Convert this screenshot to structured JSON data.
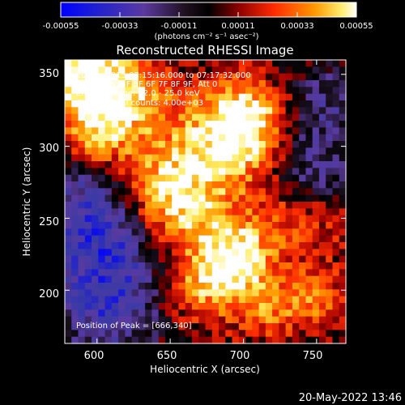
{
  "chart_data": {
    "type": "heatmap",
    "title": "Reconstructed RHESSI Image",
    "xlabel": "Heliocentric X (arcsec)",
    "ylabel": "Heliocentric Y (arcsec)",
    "xlim": [
      578,
      770
    ],
    "ylim": [
      163,
      360
    ],
    "xticks": [
      "600",
      "650",
      "700",
      "750"
    ],
    "yticks": [
      "200",
      "250",
      "300",
      "350"
    ],
    "colorbar": {
      "min": -0.00055,
      "max": 0.00055,
      "ticks": [
        "-0.00055",
        "-0.00033",
        "-0.00011",
        "0.00011",
        "0.00033",
        "0.00055"
      ],
      "unit_label": "(photons cm⁻² s⁻¹ asec⁻²)"
    },
    "annotations": [
      "20-Apr-2015 07:15:16.000 to 07:17:32.000",
      "Detectors: 3F 5F 6F 7F 8F 9F, Att 0",
      "Energy Range: 12.0 - 25.0 keV",
      "Clean    Total counts: 4.00e+03",
      "Position of Peak = [666,340]"
    ],
    "peak": [
      666,
      340
    ],
    "colormap": [
      "#0000ff",
      "#3a3aa6",
      "#5a3aa0",
      "#1a1020",
      "#000000",
      "#a00000",
      "#ff3000",
      "#ff9a00",
      "#ffee60",
      "#ffffff"
    ]
  },
  "footer": {
    "timestamp": "20-May-2022 13:46"
  }
}
